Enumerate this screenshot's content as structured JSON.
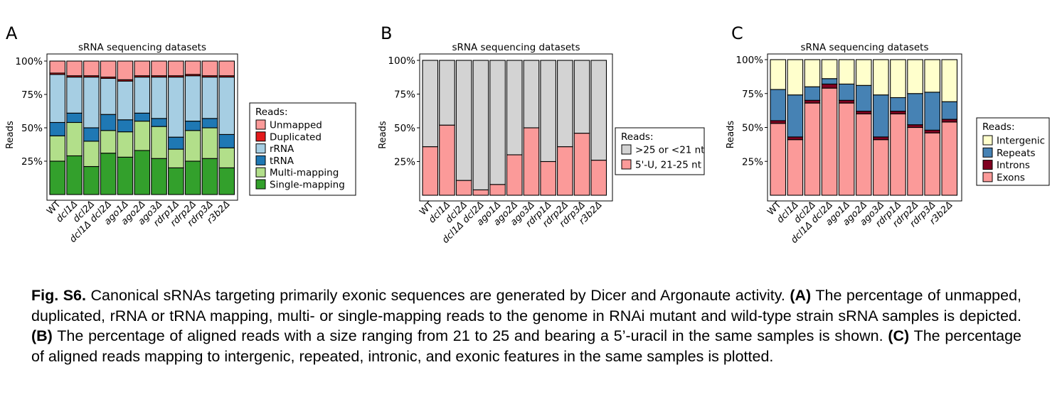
{
  "chart_data": [
    {
      "type": "bar",
      "stacked": true,
      "panel_label": "A",
      "title": "sRNA sequencing datasets",
      "xlabel": "",
      "ylabel": "Reads",
      "ylim": [
        0,
        1
      ],
      "yticks": [
        "25%",
        "50%",
        "75%",
        "100%"
      ],
      "grid": false,
      "legend_title": "Reads:",
      "legend_position": "right",
      "categories": [
        "WT",
        "dcl1Δ",
        "dcl2Δ",
        "dcl1Δ dcl2Δ",
        "ago1Δ",
        "ago2Δ",
        "ago3Δ",
        "rdrp1Δ",
        "rdrp2Δ",
        "rdrp3Δ",
        "r3b2Δ"
      ],
      "series": [
        {
          "name": "Single-mapping",
          "color": "#33a02c",
          "values": [
            0.25,
            0.29,
            0.21,
            0.31,
            0.28,
            0.33,
            0.27,
            0.2,
            0.25,
            0.27,
            0.2
          ]
        },
        {
          "name": "Multi-mapping",
          "color": "#b2df8a",
          "values": [
            0.19,
            0.25,
            0.19,
            0.17,
            0.19,
            0.22,
            0.24,
            0.14,
            0.23,
            0.23,
            0.15
          ]
        },
        {
          "name": "tRNA",
          "color": "#1f78b4",
          "values": [
            0.1,
            0.07,
            0.1,
            0.12,
            0.09,
            0.06,
            0.06,
            0.09,
            0.07,
            0.07,
            0.1
          ]
        },
        {
          "name": "rRNA",
          "color": "#a6cee3",
          "values": [
            0.36,
            0.27,
            0.38,
            0.27,
            0.29,
            0.27,
            0.31,
            0.45,
            0.34,
            0.31,
            0.43
          ]
        },
        {
          "name": "Duplicated",
          "color": "#e31a1c",
          "values": [
            0.01,
            0.01,
            0.01,
            0.01,
            0.01,
            0.01,
            0.01,
            0.01,
            0.01,
            0.01,
            0.01
          ]
        },
        {
          "name": "Unmapped",
          "color": "#fb9a99",
          "values": [
            0.09,
            0.11,
            0.11,
            0.12,
            0.14,
            0.11,
            0.11,
            0.11,
            0.1,
            0.11,
            0.11
          ]
        }
      ]
    },
    {
      "type": "bar",
      "stacked": true,
      "panel_label": "B",
      "title": "sRNA sequencing datasets",
      "xlabel": "",
      "ylabel": "Reads",
      "ylim": [
        0,
        1
      ],
      "yticks": [
        "25%",
        "50%",
        "75%",
        "100%"
      ],
      "grid": false,
      "legend_title": "Reads:",
      "legend_position": "right",
      "categories": [
        "WT",
        "dcl1Δ",
        "dcl2Δ",
        "dcl1Δ dcl2Δ",
        "ago1Δ",
        "ago2Δ",
        "ago3Δ",
        "rdrp1Δ",
        "rdrp2Δ",
        "rdrp3Δ",
        "r3b2Δ"
      ],
      "series": [
        {
          "name": "5'-U, 21-25 nt",
          "color": "#fb9a99",
          "values": [
            0.36,
            0.52,
            0.11,
            0.04,
            0.08,
            0.3,
            0.5,
            0.25,
            0.36,
            0.46,
            0.26
          ]
        },
        {
          "name": ">25 or <21 nt",
          "color": "#d3d3d3",
          "values": [
            0.64,
            0.48,
            0.89,
            0.96,
            0.92,
            0.7,
            0.5,
            0.75,
            0.64,
            0.54,
            0.74
          ]
        }
      ]
    },
    {
      "type": "bar",
      "stacked": true,
      "panel_label": "C",
      "title": "sRNA sequencing datasets",
      "xlabel": "",
      "ylabel": "Reads",
      "ylim": [
        0,
        1
      ],
      "yticks": [
        "25%",
        "50%",
        "75%",
        "100%"
      ],
      "grid": false,
      "legend_title": "Reads:",
      "legend_position": "right",
      "categories": [
        "WT",
        "dcl1Δ",
        "dcl2Δ",
        "dcl1Δ dcl2Δ",
        "ago1Δ",
        "ago2Δ",
        "ago3Δ",
        "rdrp1Δ",
        "rdrp2Δ",
        "rdrp3Δ",
        "r3b2Δ"
      ],
      "series": [
        {
          "name": "Exons",
          "color": "#fb9a99",
          "values": [
            0.53,
            0.41,
            0.68,
            0.79,
            0.68,
            0.6,
            0.41,
            0.6,
            0.5,
            0.46,
            0.54
          ]
        },
        {
          "name": "Introns",
          "color": "#800020",
          "values": [
            0.02,
            0.02,
            0.02,
            0.03,
            0.02,
            0.02,
            0.02,
            0.02,
            0.02,
            0.02,
            0.02
          ]
        },
        {
          "name": "Repeats",
          "color": "#4682b4",
          "values": [
            0.23,
            0.31,
            0.1,
            0.04,
            0.12,
            0.19,
            0.31,
            0.1,
            0.23,
            0.28,
            0.13
          ]
        },
        {
          "name": "Intergenic",
          "color": "#ffffcc",
          "values": [
            0.22,
            0.26,
            0.2,
            0.14,
            0.18,
            0.19,
            0.26,
            0.28,
            0.25,
            0.24,
            0.31
          ]
        }
      ]
    }
  ],
  "caption": {
    "fig_label": "Fig. S6.",
    "text1": " Canonical sRNAs targeting primarily exonic sequences are generated by Dicer and Argonaute activity. ",
    "a_label": "(A)",
    "text2": " The percentage of unmapped, duplicated, rRNA or tRNA mapping, multi- or single-mapping reads to the genome in RNAi mutant and wild-type strain sRNA samples is depicted. ",
    "b_label": "(B)",
    "text3": " The percentage of aligned reads with a size ranging from 21 to 25 and bearing a 5’-uracil in the same samples is shown. ",
    "c_label": "(C)",
    "text4": " The percentage of aligned reads mapping to intergenic, repeated, intronic, and exonic features in the same samples is plotted."
  }
}
